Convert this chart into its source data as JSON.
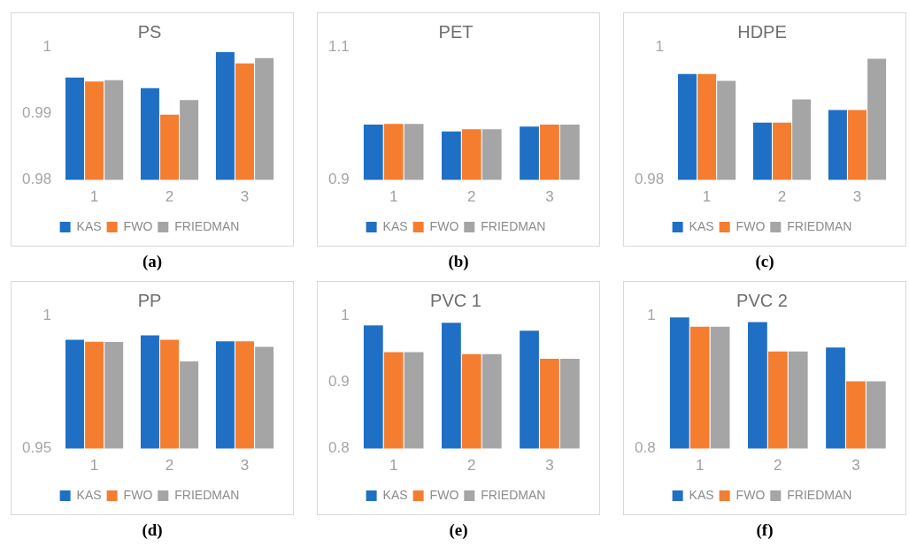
{
  "chart_data": [
    {
      "type": "bar",
      "title": "PS",
      "categories": [
        "1",
        "2",
        "3"
      ],
      "series": [
        {
          "name": "KAS",
          "color": "#1f6fc5",
          "values": [
            0.9954,
            0.9938,
            0.9992
          ]
        },
        {
          "name": "FWO",
          "color": "#f47d30",
          "values": [
            0.9948,
            0.9898,
            0.9975
          ]
        },
        {
          "name": "FRIEDMAN",
          "color": "#a5a5a5",
          "values": [
            0.995,
            0.992,
            0.9983
          ]
        }
      ],
      "ylim": [
        0.98,
        1
      ],
      "yticks": [
        0.98,
        0.99,
        1
      ],
      "legend": "bottom",
      "annotations": [
        "(a)"
      ]
    },
    {
      "type": "bar",
      "title": "PET",
      "categories": [
        "1",
        "2",
        "3"
      ],
      "series": [
        {
          "name": "KAS",
          "color": "#1f6fc5",
          "values": [
            0.983,
            0.973,
            0.98
          ]
        },
        {
          "name": "FWO",
          "color": "#f47d30",
          "values": [
            0.984,
            0.976,
            0.983
          ]
        },
        {
          "name": "FRIEDMAN",
          "color": "#a5a5a5",
          "values": [
            0.984,
            0.976,
            0.983
          ]
        }
      ],
      "ylim": [
        0.9,
        1.1
      ],
      "yticks": [
        0.9,
        1.1
      ],
      "legend": "bottom",
      "annotations": [
        "(b)"
      ]
    },
    {
      "type": "bar",
      "title": "HDPE",
      "categories": [
        "1",
        "2",
        "3"
      ],
      "series": [
        {
          "name": "KAS",
          "color": "#1f6fc5",
          "values": [
            0.9959,
            0.9886,
            0.9905
          ]
        },
        {
          "name": "FWO",
          "color": "#f47d30",
          "values": [
            0.9959,
            0.9886,
            0.9905
          ]
        },
        {
          "name": "FRIEDMAN",
          "color": "#a5a5a5",
          "values": [
            0.9949,
            0.9921,
            0.9982
          ]
        }
      ],
      "ylim": [
        0.98,
        1
      ],
      "yticks": [
        0.98,
        1
      ],
      "legend": "bottom",
      "annotations": [
        "(c)"
      ]
    },
    {
      "type": "bar",
      "title": "PP",
      "categories": [
        "1",
        "2",
        "3"
      ],
      "series": [
        {
          "name": "KAS",
          "color": "#1f6fc5",
          "values": [
            0.9909,
            0.9925,
            0.9903
          ]
        },
        {
          "name": "FWO",
          "color": "#f47d30",
          "values": [
            0.9901,
            0.9909,
            0.9903
          ]
        },
        {
          "name": "FRIEDMAN",
          "color": "#a5a5a5",
          "values": [
            0.99,
            0.9827,
            0.9882
          ]
        }
      ],
      "ylim": [
        0.95,
        1
      ],
      "yticks": [
        0.95,
        1
      ],
      "legend": "bottom",
      "annotations": [
        "(d)"
      ]
    },
    {
      "type": "bar",
      "title": "PVC 1",
      "categories": [
        "1",
        "2",
        "3"
      ],
      "series": [
        {
          "name": "KAS",
          "color": "#1f6fc5",
          "values": [
            0.985,
            0.989,
            0.977
          ]
        },
        {
          "name": "FWO",
          "color": "#f47d30",
          "values": [
            0.945,
            0.942,
            0.935
          ]
        },
        {
          "name": "FRIEDMAN",
          "color": "#a5a5a5",
          "values": [
            0.945,
            0.942,
            0.935
          ]
        }
      ],
      "ylim": [
        0.8,
        1
      ],
      "yticks": [
        0.8,
        0.9,
        1
      ],
      "legend": "bottom",
      "annotations": [
        "(e)"
      ]
    },
    {
      "type": "bar",
      "title": "PVC 2",
      "categories": [
        "1",
        "2",
        "3"
      ],
      "series": [
        {
          "name": "KAS",
          "color": "#1f6fc5",
          "values": [
            0.997,
            0.99,
            0.952
          ]
        },
        {
          "name": "FWO",
          "color": "#f47d30",
          "values": [
            0.983,
            0.946,
            0.901
          ]
        },
        {
          "name": "FRIEDMAN",
          "color": "#a5a5a5",
          "values": [
            0.983,
            0.946,
            0.901
          ]
        }
      ],
      "ylim": [
        0.8,
        1
      ],
      "yticks": [
        0.8,
        1
      ],
      "legend": "bottom",
      "annotations": [
        "(f)"
      ]
    }
  ]
}
